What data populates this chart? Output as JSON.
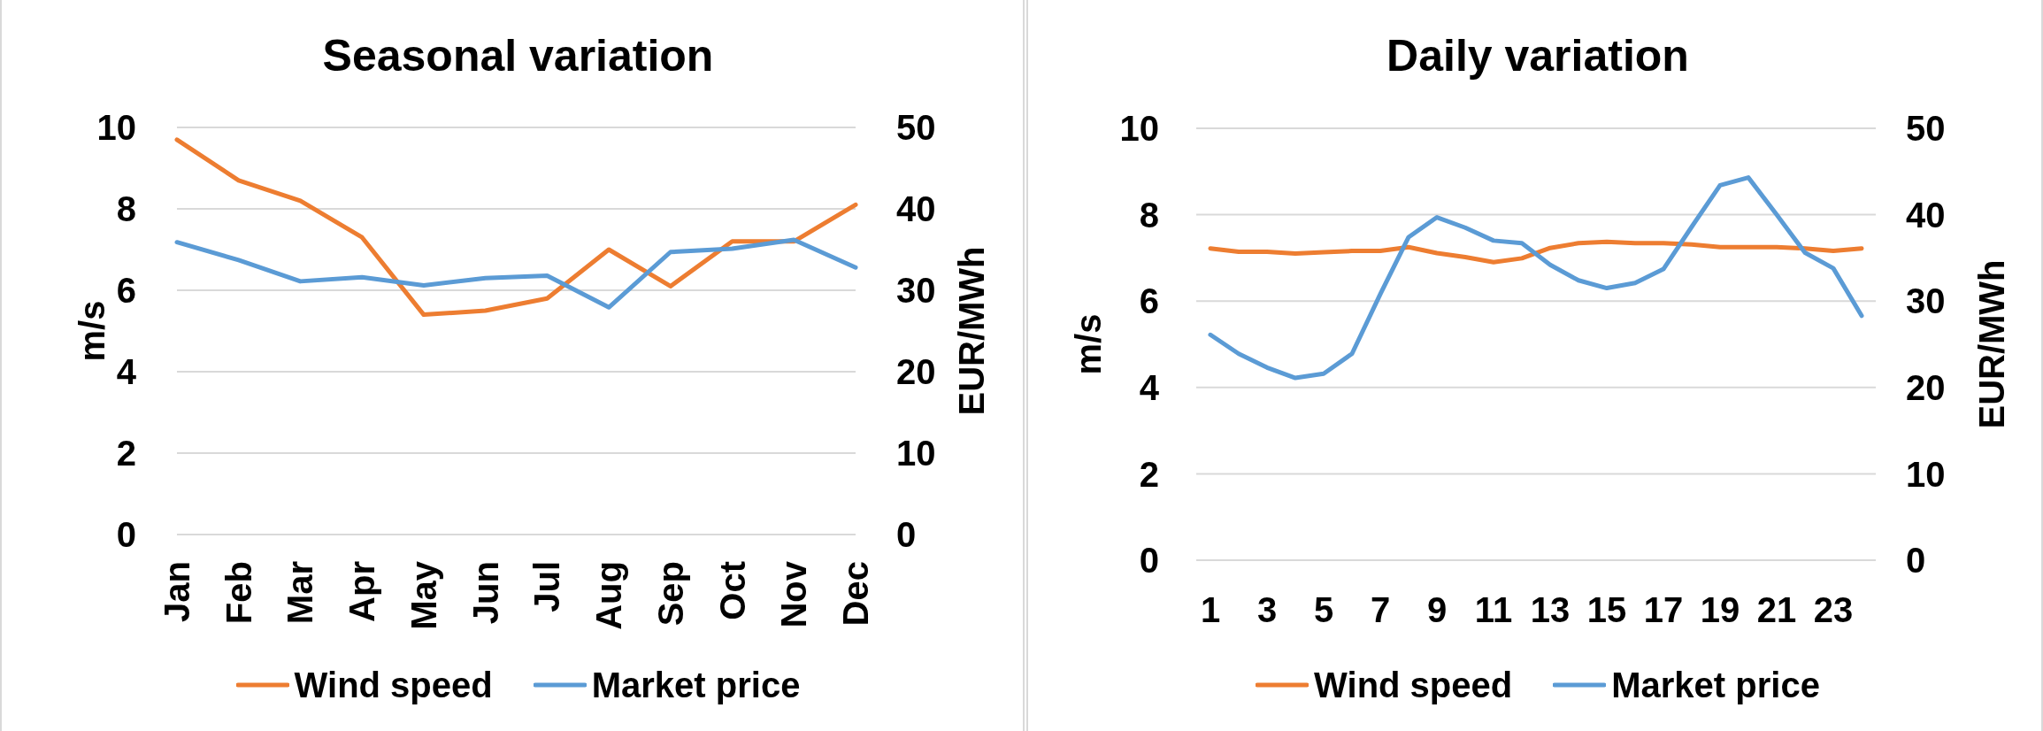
{
  "chart_data": [
    {
      "type": "line",
      "title": "Seasonal variation",
      "categories": [
        "Jan",
        "Feb",
        "Mar",
        "Apr",
        "May",
        "Jun",
        "Jul",
        "Aug",
        "Sep",
        "Oct",
        "Nov",
        "Dec"
      ],
      "series": [
        {
          "name": "Wind speed",
          "color": "#ed7d31",
          "values": [
            9.7,
            8.7,
            8.2,
            7.3,
            5.4,
            5.5,
            5.8,
            7.0,
            6.1,
            7.2,
            7.2,
            8.1
          ]
        },
        {
          "name": "Market price",
          "color": "#5b9bd5",
          "axis": "y2",
          "values": [
            35.9,
            33.7,
            31.1,
            31.6,
            30.6,
            31.5,
            31.8,
            27.9,
            34.7,
            35.1,
            36.2,
            32.8
          ]
        }
      ],
      "ylabel": "m/s",
      "y2label": "EUR/MWh",
      "ylim": [
        0,
        10
      ],
      "yticks": [
        0,
        2,
        4,
        6,
        8,
        10
      ],
      "y2lim": [
        0,
        50
      ],
      "y2ticks": [
        0,
        10,
        20,
        30,
        40,
        50
      ],
      "grid": "y",
      "legend": "bottom",
      "marker": "none"
    },
    {
      "type": "line",
      "title": "Daily variation",
      "x": [
        1,
        2,
        3,
        4,
        5,
        6,
        7,
        8,
        9,
        10,
        11,
        12,
        13,
        14,
        15,
        16,
        17,
        18,
        19,
        20,
        21,
        22,
        23,
        24
      ],
      "xlim": [
        0.5,
        24.5
      ],
      "xticks": [
        1,
        3,
        5,
        7,
        9,
        11,
        13,
        15,
        17,
        19,
        21,
        23
      ],
      "series": [
        {
          "name": "Wind speed",
          "color": "#ed7d31",
          "values": [
            7.22,
            7.14,
            7.14,
            7.1,
            7.13,
            7.16,
            7.16,
            7.25,
            7.11,
            7.02,
            6.9,
            6.99,
            7.23,
            7.34,
            7.37,
            7.34,
            7.34,
            7.31,
            7.25,
            7.25,
            7.25,
            7.22,
            7.16,
            7.22
          ]
        },
        {
          "name": "Market price",
          "color": "#5b9bd5",
          "axis": "y2",
          "values": [
            26.1,
            23.9,
            22.3,
            21.1,
            21.6,
            23.9,
            30.8,
            37.4,
            39.7,
            38.5,
            37.0,
            36.7,
            34.2,
            32.4,
            31.5,
            32.1,
            33.7,
            38.6,
            43.4,
            44.3,
            40.0,
            35.6,
            33.8,
            28.3
          ]
        }
      ],
      "ylabel": "m/s",
      "y2label": "EUR/MWh",
      "ylim": [
        0,
        10
      ],
      "yticks": [
        0,
        2,
        4,
        6,
        8,
        10
      ],
      "y2lim": [
        0,
        50
      ],
      "y2ticks": [
        0,
        10,
        20,
        30,
        40,
        50
      ],
      "grid": "y",
      "legend": "bottom",
      "marker": "none"
    }
  ]
}
